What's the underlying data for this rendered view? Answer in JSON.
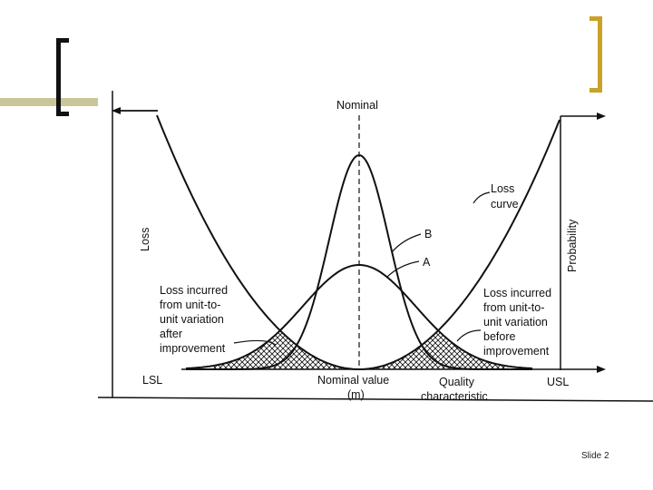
{
  "slide": {
    "number_label": "Slide 2"
  },
  "diagram": {
    "nominal_top_label": "Nominal",
    "loss_axis_label": "Loss",
    "probability_axis_label": "Probability",
    "curve_b_label": "B",
    "curve_a_label": "A",
    "loss_curve_label": [
      "Loss",
      "curve"
    ],
    "left_annotation": [
      "Loss incurred",
      "from unit-to-",
      "unit variation",
      "after",
      "improvement"
    ],
    "right_annotation": [
      "Loss incurred",
      "from unit-to-",
      "unit variation",
      "before",
      "improvement"
    ],
    "lsl_label": "LSL",
    "usl_label": "USL",
    "nominal_value_label": [
      "Nominal value",
      "(m)"
    ],
    "quality_label": [
      "Quality",
      "characteristic"
    ]
  },
  "colors": {
    "accent_olive": "#c9c79a",
    "accent_gold": "#c9a227",
    "ink": "#111111"
  }
}
